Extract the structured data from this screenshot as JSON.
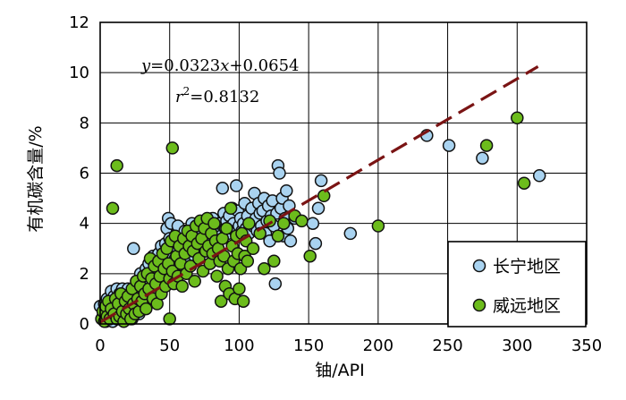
{
  "chart_data": {
    "type": "scatter",
    "xlabel": "铀/API",
    "ylabel": "有机碳含量/%",
    "xlim": [
      0,
      350
    ],
    "ylim": [
      0,
      12
    ],
    "x_ticks": [
      0,
      50,
      100,
      150,
      200,
      250,
      300,
      350
    ],
    "y_ticks": [
      0,
      2,
      4,
      6,
      8,
      10,
      12
    ],
    "grid": true,
    "legend_position": "bottom-right",
    "annotation": {
      "line1": {
        "y": "y",
        "eq": "=0.0323",
        "x": "x",
        "rest": "+0.0654"
      },
      "line2": {
        "r": "r",
        "sup": "2",
        "rest": "=0.8132"
      }
    },
    "fit_line": {
      "slope": 0.0323,
      "intercept": 0.0654,
      "x_range": [
        0,
        315
      ],
      "color": "#7a1414",
      "style": "dashed"
    },
    "series": [
      {
        "name": "长宁地区",
        "color": "#a9d3f0",
        "points": [
          [
            0,
            0.7
          ],
          [
            2,
            0.3
          ],
          [
            3,
            0.8
          ],
          [
            4,
            0.1
          ],
          [
            5,
            0.5
          ],
          [
            5,
            1.0
          ],
          [
            6,
            0.2
          ],
          [
            7,
            0.9
          ],
          [
            8,
            0.4
          ],
          [
            8,
            1.3
          ],
          [
            9,
            0.1
          ],
          [
            10,
            0.7
          ],
          [
            10,
            1.1
          ],
          [
            11,
            0.3
          ],
          [
            12,
            0.9
          ],
          [
            12,
            1.4
          ],
          [
            13,
            0.2
          ],
          [
            14,
            0.6
          ],
          [
            14,
            1.2
          ],
          [
            15,
            0.4
          ],
          [
            16,
            1.0
          ],
          [
            16,
            1.4
          ],
          [
            17,
            0.5
          ],
          [
            18,
            0.2
          ],
          [
            18,
            1.1
          ],
          [
            19,
            0.7
          ],
          [
            20,
            0.3
          ],
          [
            20,
            1.4
          ],
          [
            21,
            1.0
          ],
          [
            22,
            0.6
          ],
          [
            23,
            0.2
          ],
          [
            24,
            3.0
          ],
          [
            25,
            1.3
          ],
          [
            26,
            0.8
          ],
          [
            27,
            1.6
          ],
          [
            28,
            0.4
          ],
          [
            29,
            2.0
          ],
          [
            30,
            1.2
          ],
          [
            31,
            1.8
          ],
          [
            32,
            0.7
          ],
          [
            33,
            2.2
          ],
          [
            34,
            1.5
          ],
          [
            35,
            2.4
          ],
          [
            36,
            1.0
          ],
          [
            37,
            1.9
          ],
          [
            38,
            2.7
          ],
          [
            40,
            1.4
          ],
          [
            41,
            2.2
          ],
          [
            42,
            2.8
          ],
          [
            43,
            1.8
          ],
          [
            44,
            3.1
          ],
          [
            45,
            2.5
          ],
          [
            46,
            1.9
          ],
          [
            47,
            3.2
          ],
          [
            48,
            2.0
          ],
          [
            48,
            3.8
          ],
          [
            49,
            4.2
          ],
          [
            50,
            2.8
          ],
          [
            50,
            3.4
          ],
          [
            51,
            4.0
          ],
          [
            52,
            2.2
          ],
          [
            53,
            3.1
          ],
          [
            54,
            2.6
          ],
          [
            55,
            3.6
          ],
          [
            56,
            3.9
          ],
          [
            57,
            2.4
          ],
          [
            58,
            3.3
          ],
          [
            60,
            2.9
          ],
          [
            61,
            3.7
          ],
          [
            62,
            3.1
          ],
          [
            63,
            2.5
          ],
          [
            64,
            3.5
          ],
          [
            65,
            3.0
          ],
          [
            66,
            4.0
          ],
          [
            67,
            3.4
          ],
          [
            68,
            2.7
          ],
          [
            70,
            3.8
          ],
          [
            71,
            3.3
          ],
          [
            72,
            3.9
          ],
          [
            73,
            2.9
          ],
          [
            74,
            3.6
          ],
          [
            75,
            3.1
          ],
          [
            76,
            4.0
          ],
          [
            77,
            3.5
          ],
          [
            78,
            3.0
          ],
          [
            79,
            3.9
          ],
          [
            80,
            3.3
          ],
          [
            81,
            4.2
          ],
          [
            82,
            3.6
          ],
          [
            83,
            3.1
          ],
          [
            84,
            3.8
          ],
          [
            85,
            3.4
          ],
          [
            86,
            4.0
          ],
          [
            87,
            3.5
          ],
          [
            88,
            5.4
          ],
          [
            89,
            4.4
          ],
          [
            90,
            3.8
          ],
          [
            91,
            4.1
          ],
          [
            92,
            3.6
          ],
          [
            93,
            4.3
          ],
          [
            94,
            3.9
          ],
          [
            95,
            4.6
          ],
          [
            96,
            4.0
          ],
          [
            97,
            3.7
          ],
          [
            98,
            5.5
          ],
          [
            99,
            4.5
          ],
          [
            100,
            3.9
          ],
          [
            101,
            4.2
          ],
          [
            102,
            3.7
          ],
          [
            103,
            4.0
          ],
          [
            104,
            4.8
          ],
          [
            105,
            3.8
          ],
          [
            106,
            4.3
          ],
          [
            107,
            3.6
          ],
          [
            108,
            4.0
          ],
          [
            109,
            4.6
          ],
          [
            110,
            3.9
          ],
          [
            111,
            5.2
          ],
          [
            112,
            4.2
          ],
          [
            113,
            3.7
          ],
          [
            114,
            4.8
          ],
          [
            115,
            4.4
          ],
          [
            116,
            3.9
          ],
          [
            117,
            4.5
          ],
          [
            118,
            5.0
          ],
          [
            119,
            3.6
          ],
          [
            120,
            4.1
          ],
          [
            121,
            4.7
          ],
          [
            122,
            3.3
          ],
          [
            123,
            4.3
          ],
          [
            124,
            4.9
          ],
          [
            125,
            3.9
          ],
          [
            126,
            1.6
          ],
          [
            127,
            4.4
          ],
          [
            128,
            6.3
          ],
          [
            129,
            6.0
          ],
          [
            130,
            4.6
          ],
          [
            131,
            5.0
          ],
          [
            132,
            3.5
          ],
          [
            133,
            4.2
          ],
          [
            134,
            5.3
          ],
          [
            135,
            3.8
          ],
          [
            136,
            4.7
          ],
          [
            137,
            3.3
          ],
          [
            140,
            4.2
          ],
          [
            153,
            4.0
          ],
          [
            155,
            3.2
          ],
          [
            157,
            4.6
          ],
          [
            159,
            5.7
          ],
          [
            180,
            3.6
          ],
          [
            235,
            7.5
          ],
          [
            251,
            7.1
          ],
          [
            275,
            6.6
          ],
          [
            316,
            5.9
          ]
        ]
      },
      {
        "name": "威远地区",
        "color": "#6cbc1c",
        "points": [
          [
            1,
            0.2
          ],
          [
            2,
            0.5
          ],
          [
            3,
            0.1
          ],
          [
            4,
            0.7
          ],
          [
            5,
            0.3
          ],
          [
            6,
            0.9
          ],
          [
            7,
            0.2
          ],
          [
            8,
            0.6
          ],
          [
            9,
            4.6
          ],
          [
            10,
            0.4
          ],
          [
            11,
            1.0
          ],
          [
            12,
            6.3
          ],
          [
            12,
            0.2
          ],
          [
            13,
            0.8
          ],
          [
            14,
            0.3
          ],
          [
            15,
            1.2
          ],
          [
            16,
            0.5
          ],
          [
            17,
            0.1
          ],
          [
            18,
            0.9
          ],
          [
            19,
            0.4
          ],
          [
            20,
            1.1
          ],
          [
            21,
            0.6
          ],
          [
            22,
            0.2
          ],
          [
            23,
            1.4
          ],
          [
            24,
            0.8
          ],
          [
            25,
            0.4
          ],
          [
            26,
            1.7
          ],
          [
            27,
            1.0
          ],
          [
            28,
            0.5
          ],
          [
            29,
            1.5
          ],
          [
            30,
            0.9
          ],
          [
            31,
            1.9
          ],
          [
            32,
            1.2
          ],
          [
            33,
            0.6
          ],
          [
            34,
            2.0
          ],
          [
            35,
            1.4
          ],
          [
            36,
            2.6
          ],
          [
            37,
            1.8
          ],
          [
            38,
            1.0
          ],
          [
            39,
            2.3
          ],
          [
            40,
            1.6
          ],
          [
            41,
            0.8
          ],
          [
            42,
            2.5
          ],
          [
            43,
            1.9
          ],
          [
            44,
            1.2
          ],
          [
            45,
            2.8
          ],
          [
            46,
            2.2
          ],
          [
            47,
            1.5
          ],
          [
            48,
            3.0
          ],
          [
            49,
            2.4
          ],
          [
            50,
            0.2
          ],
          [
            50,
            1.8
          ],
          [
            51,
            3.3
          ],
          [
            52,
            7.0
          ],
          [
            52,
            2.1
          ],
          [
            53,
            1.6
          ],
          [
            54,
            3.5
          ],
          [
            55,
            2.7
          ],
          [
            56,
            1.9
          ],
          [
            57,
            3.1
          ],
          [
            58,
            2.4
          ],
          [
            59,
            1.5
          ],
          [
            60,
            3.4
          ],
          [
            61,
            2.8
          ],
          [
            62,
            2.0
          ],
          [
            63,
            3.7
          ],
          [
            64,
            3.1
          ],
          [
            65,
            2.3
          ],
          [
            66,
            3.5
          ],
          [
            67,
            2.9
          ],
          [
            68,
            1.7
          ],
          [
            69,
            3.9
          ],
          [
            70,
            3.2
          ],
          [
            71,
            2.6
          ],
          [
            72,
            4.1
          ],
          [
            73,
            3.4
          ],
          [
            74,
            2.1
          ],
          [
            75,
            3.8
          ],
          [
            76,
            2.9
          ],
          [
            77,
            4.2
          ],
          [
            78,
            3.1
          ],
          [
            79,
            2.4
          ],
          [
            80,
            3.6
          ],
          [
            81,
            2.8
          ],
          [
            82,
            4.0
          ],
          [
            83,
            3.3
          ],
          [
            84,
            1.9
          ],
          [
            85,
            3.0
          ],
          [
            86,
            2.5
          ],
          [
            87,
            0.9
          ],
          [
            88,
            3.4
          ],
          [
            89,
            2.7
          ],
          [
            90,
            1.5
          ],
          [
            91,
            3.8
          ],
          [
            92,
            2.2
          ],
          [
            93,
            1.2
          ],
          [
            94,
            4.6
          ],
          [
            95,
            3.1
          ],
          [
            96,
            2.5
          ],
          [
            97,
            1.0
          ],
          [
            98,
            3.5
          ],
          [
            99,
            2.8
          ],
          [
            100,
            1.4
          ],
          [
            101,
            2.2
          ],
          [
            102,
            3.6
          ],
          [
            103,
            0.9
          ],
          [
            104,
            2.7
          ],
          [
            105,
            3.3
          ],
          [
            106,
            2.5
          ],
          [
            107,
            4.0
          ],
          [
            110,
            3.0
          ],
          [
            115,
            3.6
          ],
          [
            118,
            2.2
          ],
          [
            122,
            4.1
          ],
          [
            125,
            2.5
          ],
          [
            128,
            3.5
          ],
          [
            132,
            4.0
          ],
          [
            140,
            4.3
          ],
          [
            145,
            4.1
          ],
          [
            151,
            2.7
          ],
          [
            161,
            5.1
          ],
          [
            200,
            3.9
          ],
          [
            278,
            7.1
          ],
          [
            300,
            8.2
          ],
          [
            305,
            5.6
          ]
        ]
      }
    ]
  }
}
